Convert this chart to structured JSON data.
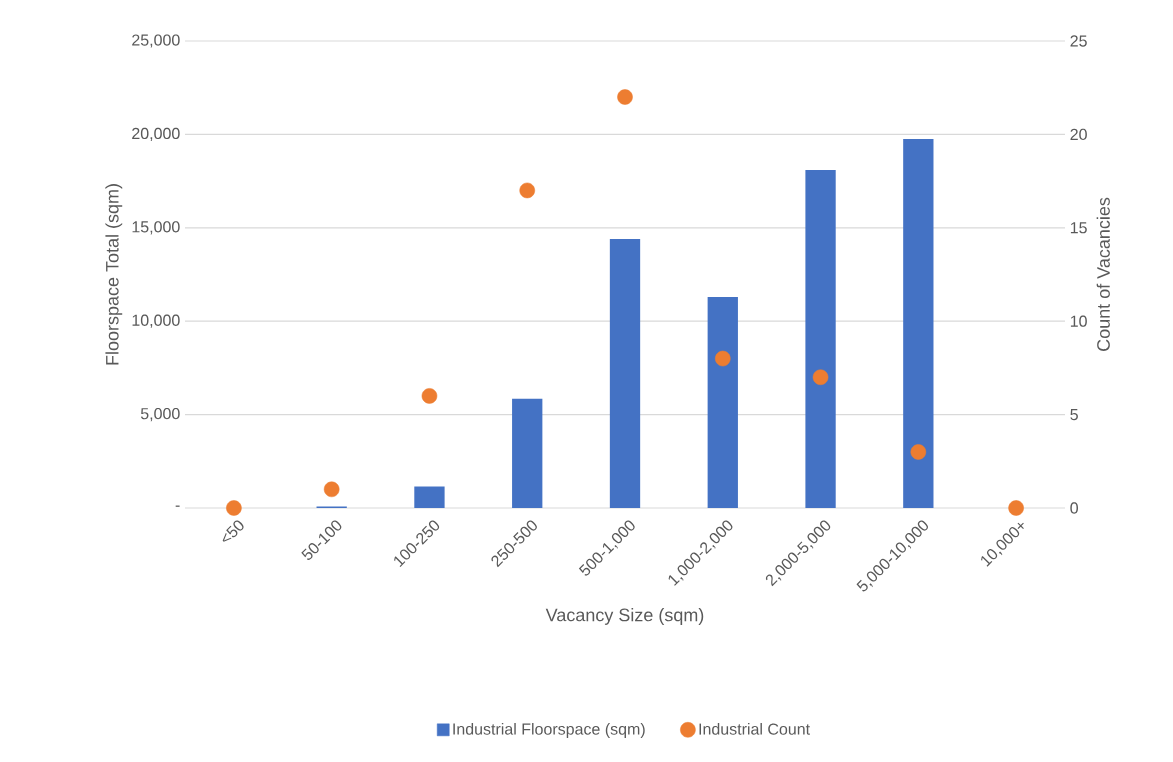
{
  "chart_data": {
    "type": "bar",
    "xlabel": "Vacancy Size (sqm)",
    "ylabel": "Floorspace Total (sqm)",
    "y2label": "Count of Vacancies",
    "categories": [
      "<50",
      "50-100",
      "100-250",
      "250-500",
      "500-1,000",
      "1,000-2,000",
      "2,000-5,000",
      "5,000-10,000",
      "10,000+"
    ],
    "ylim": [
      0,
      25000
    ],
    "yticks": [
      {
        "value": 0,
        "label": "-"
      },
      {
        "value": 5000,
        "label": "5,000"
      },
      {
        "value": 10000,
        "label": "10,000"
      },
      {
        "value": 15000,
        "label": "15,000"
      },
      {
        "value": 20000,
        "label": "20,000"
      },
      {
        "value": 25000,
        "label": "25,000"
      }
    ],
    "y2lim": [
      0,
      25
    ],
    "y2ticks": [
      0,
      5,
      10,
      15,
      20,
      25
    ],
    "grid": "y",
    "legend": "bottom",
    "series": [
      {
        "name": "Industrial Floorspace (sqm)",
        "color": "#4472c4",
        "values": [
          0,
          80,
          1150,
          5850,
          14400,
          11300,
          18100,
          19750,
          0
        ]
      },
      {
        "name": "Industrial Count",
        "type": "scatter",
        "axis": "y2",
        "marker": "circle",
        "color": "#ed7d31",
        "values": [
          0,
          1,
          6,
          17,
          22,
          8,
          7,
          3,
          0
        ]
      }
    ]
  }
}
